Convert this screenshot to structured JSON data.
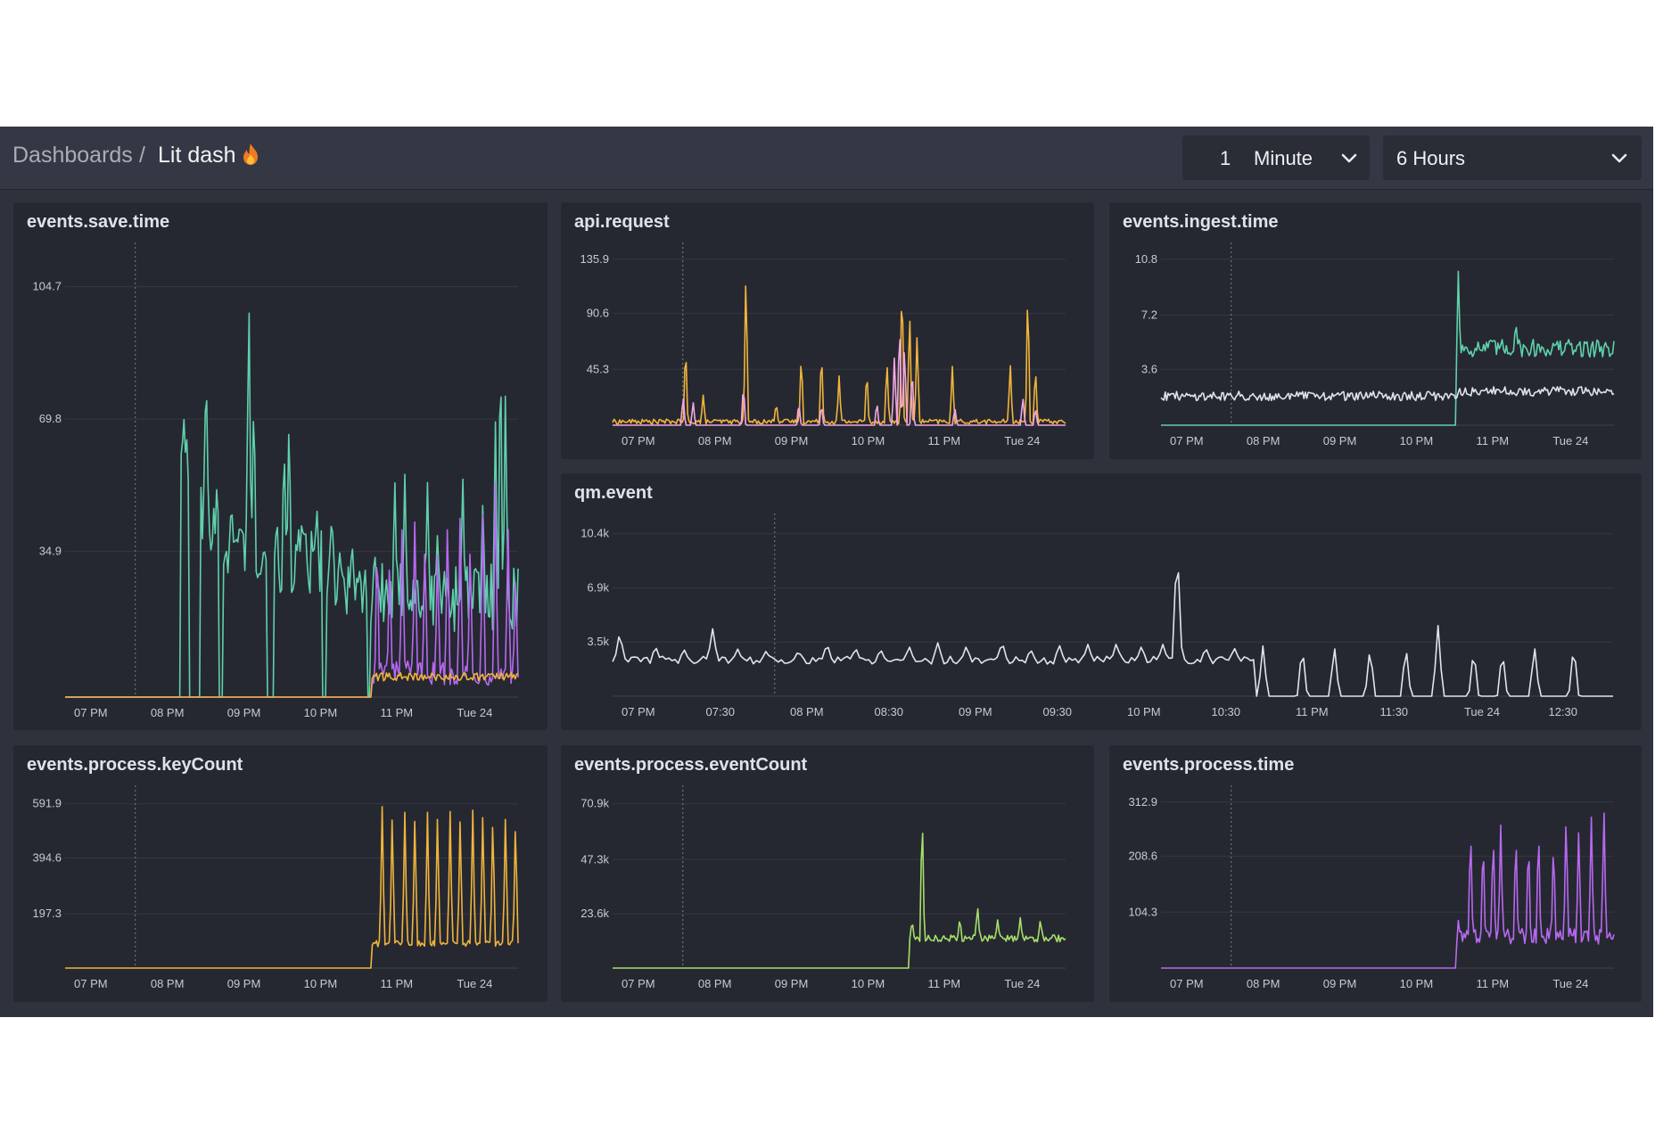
{
  "breadcrumb": {
    "root": "Dashboards",
    "separator": "/",
    "current": "Lit dash"
  },
  "controls": {
    "interval_value": "1",
    "interval_unit": "Minute",
    "range": "6 Hours"
  },
  "icons": {
    "title_badge": "fire-icon",
    "dropdown": "chevron-down-icon"
  },
  "colors": {
    "background": "#2f323d",
    "panel": "#262831",
    "teal": "#5fd1ac",
    "orange": "#f0b43c",
    "pink": "#f4a6e3",
    "purple": "#b669f0",
    "green": "#a6e06a",
    "white": "#dde6ee"
  },
  "panels": [
    {
      "title": "events.save.time",
      "chart_data": {
        "type": "line",
        "x_ticks": [
          "07 PM",
          "08 PM",
          "09 PM",
          "10 PM",
          "11 PM",
          "Tue 24"
        ],
        "y_ticks": [
          "104.7",
          "69.8",
          "34.9"
        ],
        "ylim": [
          0,
          109
        ],
        "series": [
          {
            "color": "#5fd1ac",
            "segments": [
              [
                0,
                4.6,
                0
              ],
              [
                4.6,
                4.9,
                60
              ],
              [
                4.9,
                5.4,
                0
              ],
              [
                5.4,
                6.1,
                45
              ],
              [
                6.1,
                6.3,
                0
              ],
              [
                6.3,
                8.0,
                38
              ],
              [
                8.0,
                8.3,
                0
              ],
              [
                8.3,
                10.2,
                33
              ],
              [
                10.2,
                10.4,
                0
              ],
              [
                10.4,
                12.0,
                27
              ],
              [
                12.0,
                12.1,
                0
              ],
              [
                12.1,
                18.0,
                25
              ]
            ],
            "spikes": [
              [
                4.7,
                65
              ],
              [
                5.6,
                84
              ],
              [
                5.9,
                30
              ],
              [
                6.8,
                39
              ],
              [
                7.3,
                104
              ],
              [
                7.5,
                76
              ],
              [
                8.4,
                42
              ],
              [
                8.7,
                64
              ],
              [
                8.9,
                70
              ],
              [
                9.4,
                43
              ],
              [
                10.0,
                48
              ],
              [
                10.6,
                48
              ],
              [
                11.4,
                39
              ],
              [
                12.3,
                37
              ],
              [
                13.1,
                55
              ],
              [
                13.5,
                55
              ],
              [
                14.4,
                53
              ],
              [
                14.8,
                41
              ],
              [
                15.8,
                56
              ],
              [
                16.6,
                49
              ],
              [
                17.1,
                68
              ],
              [
                17.3,
                93
              ],
              [
                17.5,
                78
              ]
            ],
            "noise": 9
          },
          {
            "color": "#b669f0",
            "segments": [
              [
                0,
                12.2,
                0
              ],
              [
                12.2,
                18.0,
                6
              ]
            ],
            "spikes": [
              [
                12.4,
                42
              ],
              [
                12.9,
                38
              ],
              [
                13.4,
                47
              ],
              [
                13.9,
                46
              ],
              [
                14.3,
                40
              ],
              [
                14.8,
                37
              ],
              [
                15.2,
                47
              ],
              [
                15.7,
                47
              ],
              [
                16.1,
                40
              ],
              [
                16.6,
                48
              ],
              [
                17.1,
                53
              ],
              [
                17.6,
                44
              ],
              [
                17.9,
                32
              ]
            ],
            "noise": 3
          },
          {
            "color": "#f0b43c",
            "segments": [
              [
                0,
                12.2,
                0
              ],
              [
                12.2,
                18.0,
                5
              ]
            ],
            "spikes": [],
            "noise": 1
          }
        ]
      }
    },
    {
      "title": "api.request",
      "chart_data": {
        "type": "line",
        "x_ticks": [
          "07 PM",
          "08 PM",
          "09 PM",
          "10 PM",
          "11 PM",
          "Tue 24"
        ],
        "y_ticks": [
          "135.9",
          "90.6",
          "45.3"
        ],
        "ylim": [
          0,
          141
        ],
        "series": [
          {
            "color": "#f0b43c",
            "segments": [
              [
                0,
                18,
                3
              ]
            ],
            "spikes": [
              [
                2.9,
                71
              ],
              [
                3.6,
                25
              ],
              [
                5.3,
                134
              ],
              [
                6.5,
                19
              ],
              [
                7.5,
                61
              ],
              [
                8.3,
                65
              ],
              [
                9.0,
                41
              ],
              [
                10.1,
                48
              ],
              [
                10.9,
                55
              ],
              [
                11.5,
                130
              ],
              [
                11.8,
                100
              ],
              [
                12.1,
                78
              ],
              [
                13.5,
                49
              ],
              [
                15.8,
                53
              ],
              [
                16.5,
                120
              ],
              [
                16.8,
                50
              ]
            ],
            "noise": 2
          },
          {
            "color": "#f4a6e3",
            "segments": [
              [
                0,
                18,
                0
              ]
            ],
            "spikes": [
              [
                2.8,
                25
              ],
              [
                3.2,
                20
              ],
              [
                5.2,
                35
              ],
              [
                7.4,
                20
              ],
              [
                8.3,
                18
              ],
              [
                10.5,
                20
              ],
              [
                11.2,
                60
              ],
              [
                11.4,
                90
              ],
              [
                11.6,
                70
              ],
              [
                11.9,
                50
              ],
              [
                13.6,
                15
              ],
              [
                16.3,
                25
              ],
              [
                16.8,
                15
              ]
            ],
            "noise": 1
          }
        ]
      }
    },
    {
      "title": "events.ingest.time",
      "chart_data": {
        "type": "line",
        "x_ticks": [
          "07 PM",
          "08 PM",
          "09 PM",
          "10 PM",
          "11 PM",
          "Tue 24"
        ],
        "y_ticks": [
          "10.8",
          "7.2",
          "3.6"
        ],
        "ylim": [
          0,
          11
        ],
        "series": [
          {
            "color": "#5fd1ac",
            "segments": [
              [
                0,
                11.8,
                0
              ],
              [
                11.8,
                18,
                5
              ]
            ],
            "spikes": [
              [
                11.8,
                10.8
              ],
              [
                14.1,
                6.7
              ]
            ],
            "noise": 0.6
          },
          {
            "color": "#dfe3e8",
            "segments": [
              [
                0,
                11.8,
                1.9
              ],
              [
                11.8,
                18,
                2.2
              ]
            ],
            "spikes": [],
            "noise": 0.3
          }
        ]
      }
    },
    {
      "title": "qm.event",
      "chart_data": {
        "type": "line",
        "x_ticks": [
          "07 PM",
          "07:30",
          "08 PM",
          "08:30",
          "09 PM",
          "09:30",
          "10 PM",
          "10:30",
          "11 PM",
          "11:30",
          "Tue 24",
          "12:30"
        ],
        "y_ticks": [
          "10.4k",
          "6.9k",
          "3.5k"
        ],
        "ylim": [
          0,
          10800
        ],
        "series": [
          {
            "color": "#dde6ee",
            "segments": [
              [
                0,
                18,
                2300
              ]
            ],
            "spikes": [
              [
                0.2,
                4100
              ],
              [
                1.2,
                3200
              ],
              [
                2.0,
                3000
              ],
              [
                2.8,
                4300
              ],
              [
                3.5,
                3000
              ],
              [
                4.3,
                2900
              ],
              [
                5.2,
                2900
              ],
              [
                6.0,
                3400
              ],
              [
                6.8,
                3100
              ],
              [
                7.5,
                3000
              ],
              [
                8.3,
                3200
              ],
              [
                9.1,
                3400
              ],
              [
                9.9,
                3200
              ],
              [
                10.9,
                3500
              ],
              [
                11.7,
                3000
              ],
              [
                12.5,
                3300
              ],
              [
                13.3,
                3300
              ],
              [
                14.1,
                3400
              ],
              [
                14.8,
                3200
              ],
              [
                15.4,
                3300
              ],
              [
                15.8,
                9900
              ],
              [
                16.6,
                3100
              ],
              [
                17.4,
                3100
              ],
              [
                18.2,
                3200
              ],
              [
                19.3,
                3300
              ],
              [
                20.2,
                3300
              ],
              [
                21.2,
                3200
              ],
              [
                22.2,
                3300
              ],
              [
                23.1,
                4500
              ],
              [
                24.1,
                3100
              ],
              [
                24.9,
                3000
              ],
              [
                25.8,
                3300
              ],
              [
                26.9,
                3400
              ]
            ],
            "noise": 250
          }
        ]
      }
    },
    {
      "title": "events.process.keyCount",
      "chart_data": {
        "type": "line",
        "x_ticks": [
          "07 PM",
          "08 PM",
          "09 PM",
          "10 PM",
          "11 PM",
          "Tue 24"
        ],
        "y_ticks": [
          "591.9",
          "394.6",
          "197.3"
        ],
        "ylim": [
          0,
          620
        ],
        "series": [
          {
            "color": "#f0b43c",
            "segments": [
              [
                0,
                12.2,
                0
              ],
              [
                12.2,
                18,
                90
              ]
            ],
            "spikes": [
              [
                12.6,
                591
              ],
              [
                13.0,
                575
              ],
              [
                13.5,
                570
              ],
              [
                13.9,
                570
              ],
              [
                14.4,
                570
              ],
              [
                14.8,
                578
              ],
              [
                15.3,
                573
              ],
              [
                15.7,
                568
              ],
              [
                16.2,
                578
              ],
              [
                16.6,
                585
              ],
              [
                17.0,
                583
              ],
              [
                17.5,
                578
              ],
              [
                17.9,
                565
              ]
            ],
            "noise": 12
          }
        ]
      }
    },
    {
      "title": "events.process.eventCount",
      "chart_data": {
        "type": "line",
        "x_ticks": [
          "07 PM",
          "08 PM",
          "09 PM",
          "10 PM",
          "11 PM",
          "Tue 24"
        ],
        "y_ticks": [
          "70.9k",
          "47.3k",
          "23.6k"
        ],
        "ylim": [
          0,
          74000
        ],
        "series": [
          {
            "color": "#a6e06a",
            "segments": [
              [
                0,
                11.8,
                0
              ],
              [
                11.8,
                18,
                13000
              ]
            ],
            "spikes": [
              [
                11.9,
                21000
              ],
              [
                12.3,
                70900
              ],
              [
                13.8,
                22000
              ],
              [
                14.5,
                28000
              ],
              [
                15.3,
                21000
              ],
              [
                16.2,
                22000
              ],
              [
                17.0,
                21500
              ]
            ],
            "noise": 1500
          }
        ]
      }
    },
    {
      "title": "events.process.time",
      "chart_data": {
        "type": "line",
        "x_ticks": [
          "07 PM",
          "08 PM",
          "09 PM",
          "10 PM",
          "11 PM",
          "Tue 24"
        ],
        "y_ticks": [
          "312.9",
          "208.6",
          "104.3"
        ],
        "ylim": [
          0,
          320
        ],
        "series": [
          {
            "color": "#b669f0",
            "segments": [
              [
                0,
                11.8,
                0
              ],
              [
                11.8,
                18,
                60
              ]
            ],
            "spikes": [
              [
                11.8,
                95
              ],
              [
                12.3,
                275
              ],
              [
                12.8,
                255
              ],
              [
                13.2,
                265
              ],
              [
                13.5,
                270
              ],
              [
                14.1,
                265
              ],
              [
                14.6,
                255
              ],
              [
                15.0,
                275
              ],
              [
                15.6,
                248
              ],
              [
                16.1,
                300
              ],
              [
                16.6,
                270
              ],
              [
                17.1,
                285
              ],
              [
                17.6,
                310
              ]
            ],
            "noise": 15
          }
        ]
      }
    }
  ]
}
